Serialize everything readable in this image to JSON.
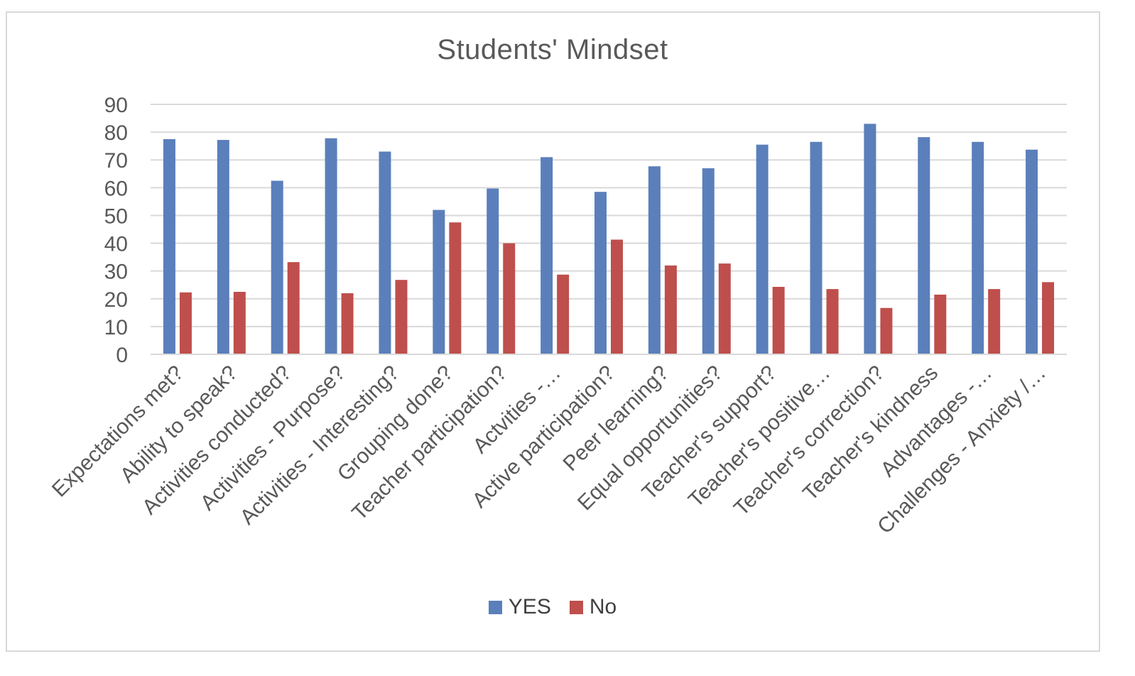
{
  "chart_data": {
    "type": "bar",
    "title": "Students' Mindset",
    "xlabel": "",
    "ylabel": "",
    "ylim": [
      0,
      90
    ],
    "yticks": [
      0,
      10,
      20,
      30,
      40,
      50,
      60,
      70,
      80,
      90
    ],
    "grid": true,
    "legend_position": "bottom",
    "categories": [
      "Expectations met?",
      "Ability to speak?",
      "Activities conducted?",
      "Activities - Purpose?",
      "Activities - Interesting?",
      "Grouping done?",
      "Teacher participation?",
      "Actvities -…",
      "Active participation?",
      "Peer learning?",
      "Equal opportunities?",
      "Teacher's support?",
      "Teacher's positive…",
      "Teacher's correction?",
      "Teacher's kindness",
      "Advantages -…",
      "Challenges - Anxiety /…"
    ],
    "series": [
      {
        "name": "YES",
        "color": "#5b7fbb",
        "values": [
          77.5,
          77.2,
          62.5,
          77.8,
          73,
          52,
          59.7,
          71,
          58.5,
          67.7,
          67,
          75.5,
          76.5,
          83,
          78.2,
          76.5,
          73.7
        ]
      },
      {
        "name": "No",
        "color": "#be4f4c",
        "values": [
          22.3,
          22.5,
          33.2,
          22,
          26.8,
          47.5,
          40,
          28.7,
          41.3,
          32,
          32.7,
          24.3,
          23.5,
          16.7,
          21.5,
          23.5,
          26
        ]
      }
    ]
  }
}
